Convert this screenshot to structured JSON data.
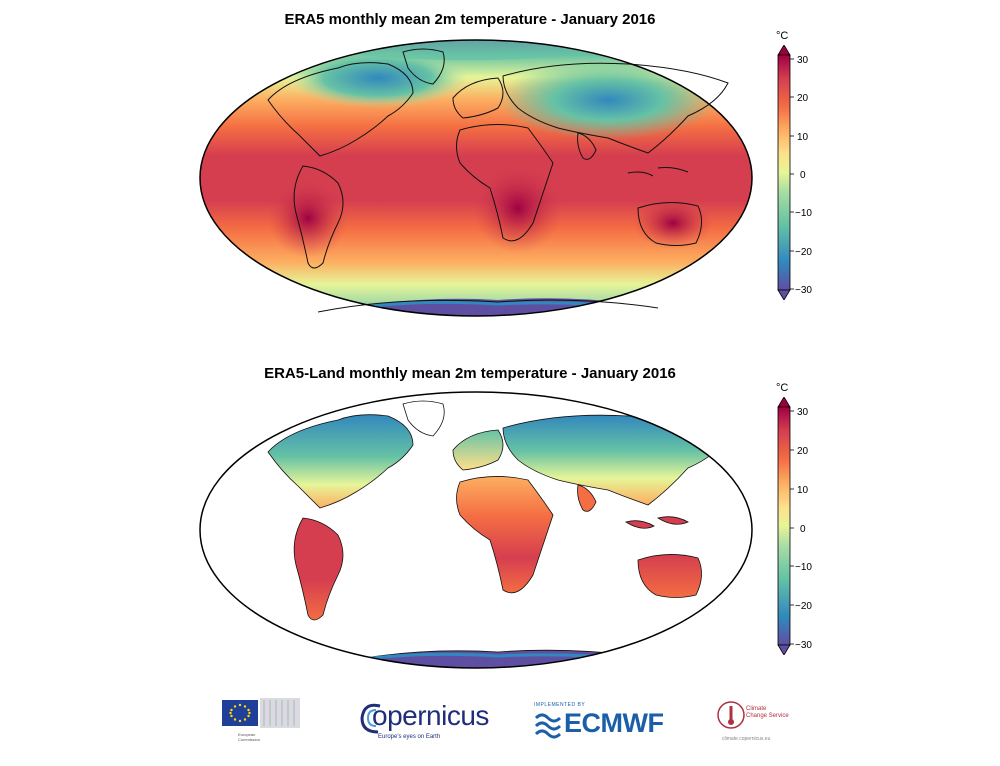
{
  "panels": [
    {
      "title": "ERA5 monthly mean 2m temperature - January 2016",
      "mode": "full",
      "unit": "°C",
      "colorbar_ticks": [
        "30",
        "20",
        "10",
        "0",
        "−10",
        "−20",
        "−30"
      ]
    },
    {
      "title": "ERA5-Land monthly mean 2m temperature - January 2016",
      "mode": "land",
      "unit": "°C",
      "colorbar_ticks": [
        "30",
        "20",
        "10",
        "0",
        "−10",
        "−20",
        "−30"
      ]
    }
  ],
  "colormap": [
    "#5e4fa2",
    "#3288bd",
    "#66c2a5",
    "#abdda4",
    "#e6f598",
    "#fee08b",
    "#fdae61",
    "#f46d43",
    "#d53e4f",
    "#9e0142"
  ],
  "logos": {
    "eu": {
      "line1": "European",
      "line2": "Commission"
    },
    "copernicus": {
      "name": "opernicus",
      "tagline": "Europe's eyes on Earth"
    },
    "ecmwf": {
      "top": "IMPLEMENTED BY",
      "name": "ECMWF"
    },
    "c3s": {
      "line1": "Climate",
      "line2": "Change Service",
      "url": "climate.copernicus.eu"
    }
  }
}
